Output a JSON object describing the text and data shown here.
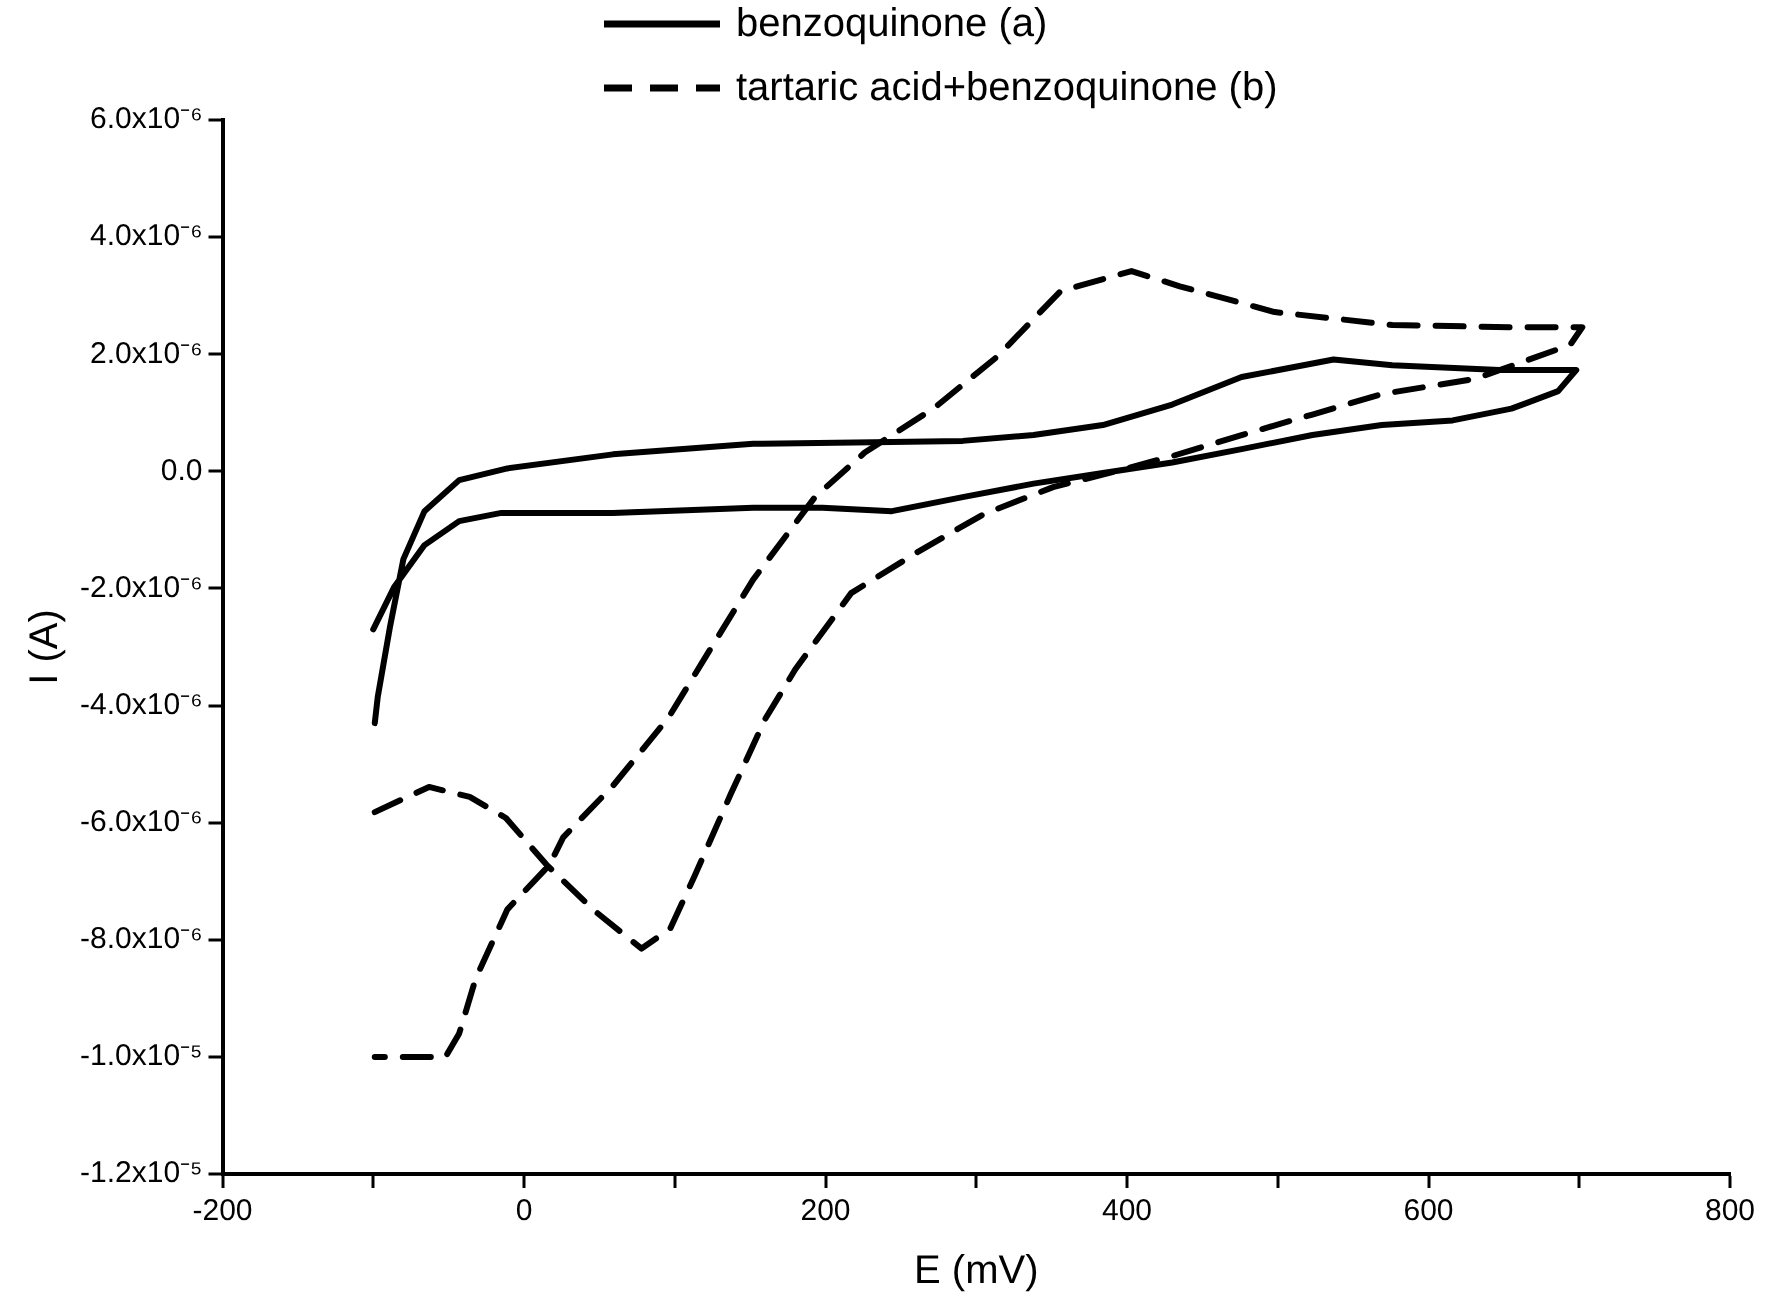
{
  "chart_data": {
    "type": "line",
    "xlabel": "E (mV)",
    "ylabel": "I (A)",
    "legend": "top",
    "grid": false,
    "marker": "none",
    "xlim": [
      -200,
      800
    ],
    "xticks": [
      -200,
      {
        "value": -100,
        "label": null
      },
      0,
      {
        "value": 100,
        "label": null
      },
      200,
      {
        "value": 300,
        "label": null
      },
      400,
      {
        "value": 500,
        "label": null
      },
      600,
      {
        "value": 700,
        "label": null
      },
      800
    ],
    "ylim": [
      -1.2e-05,
      6e-06
    ],
    "yticks": [
      {
        "value": -1.2e-05,
        "label": "-1.2x10⁻⁵"
      },
      {
        "value": -1e-05,
        "label": "-1.0x10⁻⁵"
      },
      {
        "value": -8e-06,
        "label": "-8.0x10⁻⁶"
      },
      {
        "value": -6e-06,
        "label": "-6.0x10⁻⁶"
      },
      {
        "value": -4e-06,
        "label": "-4.0x10⁻⁶"
      },
      {
        "value": -2e-06,
        "label": "-2.0x10⁻⁶"
      },
      {
        "value": 0,
        "label": "0.0"
      },
      {
        "value": 2e-06,
        "label": "2.0x10⁻⁶"
      },
      {
        "value": 4e-06,
        "label": "4.0x10⁻⁶"
      },
      {
        "value": 6e-06,
        "label": "6.0x10⁻⁶"
      }
    ],
    "series": [
      {
        "name": "benzoquinone (a)",
        "color": "#000000",
        "line_style": "solid",
        "x": [
          -100,
          -86,
          -66,
          -43,
          -15,
          59,
          152,
          198,
          244,
          291,
          338,
          384,
          430,
          476,
          523,
          569,
          616,
          655,
          686,
          698,
          647,
          576,
          537,
          476,
          430,
          384,
          338,
          291,
          244,
          152,
          59,
          -11,
          -43,
          -66,
          -80,
          -89,
          -97,
          -99
        ],
        "values": [
          -2.7e-06,
          -1.97e-06,
          -1.26e-06,
          -8.5e-07,
          -7.1e-07,
          -7.1e-07,
          -6.2e-07,
          -6.2e-07,
          -6.8e-07,
          -4.4e-07,
          -2.1e-07,
          -3e-08,
          1.5e-07,
          3.8e-07,
          6.2e-07,
          7.9e-07,
          8.7e-07,
          1.07e-06,
          1.37e-06,
          1.73e-06,
          1.73e-06,
          1.81e-06,
          1.91e-06,
          1.61e-06,
          1.14e-06,
          7.9e-07,
          6.2e-07,
          5.2e-07,
          5e-07,
          4.7e-07,
          2.9e-07,
          5e-08,
          -1.5e-07,
          -6.8e-07,
          -1.5e-06,
          -2.67e-06,
          -3.85e-06,
          -4.3e-06
        ]
      },
      {
        "name": "tartaric acid+benzoquinone (b)",
        "color": "#000000",
        "line_style": "dashed",
        "x": [
          -99,
          -63,
          -36,
          -12,
          15,
          47,
          78,
          97,
          113,
          137,
          160,
          180,
          217,
          261,
          305,
          351,
          397,
          430,
          476,
          523,
          569,
          631,
          694,
          702,
          655,
          576,
          498,
          435,
          403,
          356,
          314,
          272,
          226,
          193,
          152,
          124,
          96,
          59,
          26,
          17,
          -11,
          -32,
          -43,
          -52,
          -99
        ],
        "values": [
          -5.82e-06,
          -5.39e-06,
          -5.56e-06,
          -5.92e-06,
          -6.72e-06,
          -7.51e-06,
          -8.15e-06,
          -7.81e-06,
          -6.92e-06,
          -5.52e-06,
          -4.23e-06,
          -3.38e-06,
          -2.08e-06,
          -1.38e-06,
          -7.3e-07,
          -2.7e-07,
          3e-08,
          2.6e-07,
          6.2e-07,
          9.7e-07,
          1.32e-06,
          1.58e-06,
          2.16e-06,
          2.46e-06,
          2.46e-06,
          2.5e-06,
          2.72e-06,
          3.16e-06,
          3.42e-06,
          3.08e-06,
          1.96e-06,
          1.08e-06,
          3.2e-07,
          -4.4e-07,
          -1.85e-06,
          -3.02e-06,
          -4.2e-06,
          -5.37e-06,
          -6.25e-06,
          -6.72e-06,
          -7.48e-06,
          -8.66e-06,
          -9.6e-06,
          -1e-05,
          -1e-05
        ]
      }
    ]
  }
}
